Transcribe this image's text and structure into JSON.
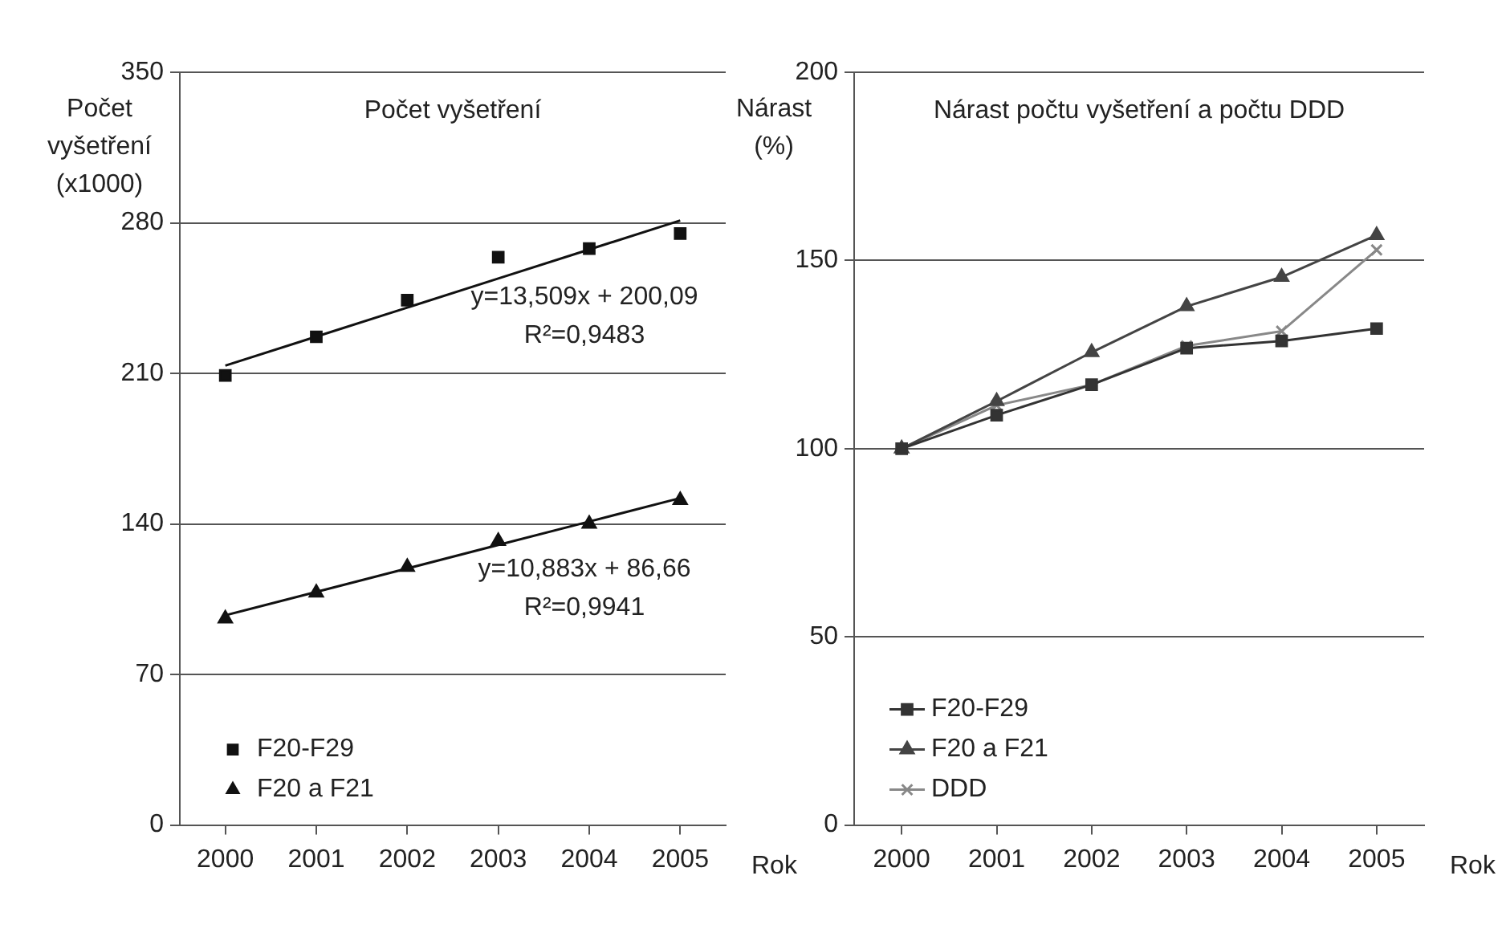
{
  "chart_data": [
    {
      "type": "scatter",
      "title": "Počet vyšetření",
      "ylabel": "Počet vyšetření (x1000)",
      "xlabel": "Rok",
      "x": [
        2000,
        2001,
        2002,
        2003,
        2004,
        2005
      ],
      "xlim": [
        1999.5,
        2005.5
      ],
      "xticks": [
        2000,
        2001,
        2002,
        2003,
        2004,
        2005
      ],
      "ylim": [
        0,
        350
      ],
      "yticks": [
        0,
        70,
        140,
        210,
        280,
        350
      ],
      "grid": "y",
      "legend": "bottom left",
      "series": [
        {
          "name": "F20-F29",
          "color": "#111111",
          "marker": "square",
          "values": [
            209,
            227,
            244,
            264,
            268,
            275
          ]
        },
        {
          "name": "F20 a F21",
          "color": "#111111",
          "marker": "triangle",
          "values": [
            96,
            108,
            120,
            132,
            140,
            151
          ]
        },
        {
          "type": "line",
          "color": "#111111",
          "marker": "none",
          "values": [
            213.6,
            227.1,
            240.6,
            254.1,
            267.6,
            281.1
          ]
        },
        {
          "type": "line",
          "color": "#111111",
          "marker": "none",
          "values": [
            97.5,
            108.4,
            119.3,
            130.2,
            141.1,
            152.0
          ]
        }
      ],
      "annotations": [
        "y=13,509x + 200,09",
        "R²=0,9483",
        "y=10,883x + 86,66",
        "R²=0,9941"
      ]
    },
    {
      "type": "line",
      "title": "Nárast počtu vyšetření a počtu DDD",
      "ylabel": "Nárast (%)",
      "xlabel": "Rok",
      "x": [
        2000,
        2001,
        2002,
        2003,
        2004,
        2005
      ],
      "xlim": [
        1999.5,
        2005.5
      ],
      "xticks": [
        2000,
        2001,
        2002,
        2003,
        2004,
        2005
      ],
      "ylim": [
        0,
        200
      ],
      "yticks": [
        0,
        50,
        100,
        150,
        200
      ],
      "grid": "y",
      "legend": "bottom left",
      "series": [
        {
          "name": "F20-F29",
          "color": "#333333",
          "marker": "square",
          "values": [
            100,
            108.9,
            117,
            126.7,
            128.6,
            131.9
          ]
        },
        {
          "name": "F20 a F21",
          "color": "#444444",
          "marker": "triangle",
          "values": [
            100,
            112.6,
            125.6,
            137.8,
            145.6,
            156.7
          ]
        },
        {
          "name": "DDD",
          "color": "#888888",
          "marker": "cross",
          "values": [
            100,
            111.5,
            117,
            127.3,
            131.2,
            152.8
          ]
        }
      ]
    }
  ]
}
